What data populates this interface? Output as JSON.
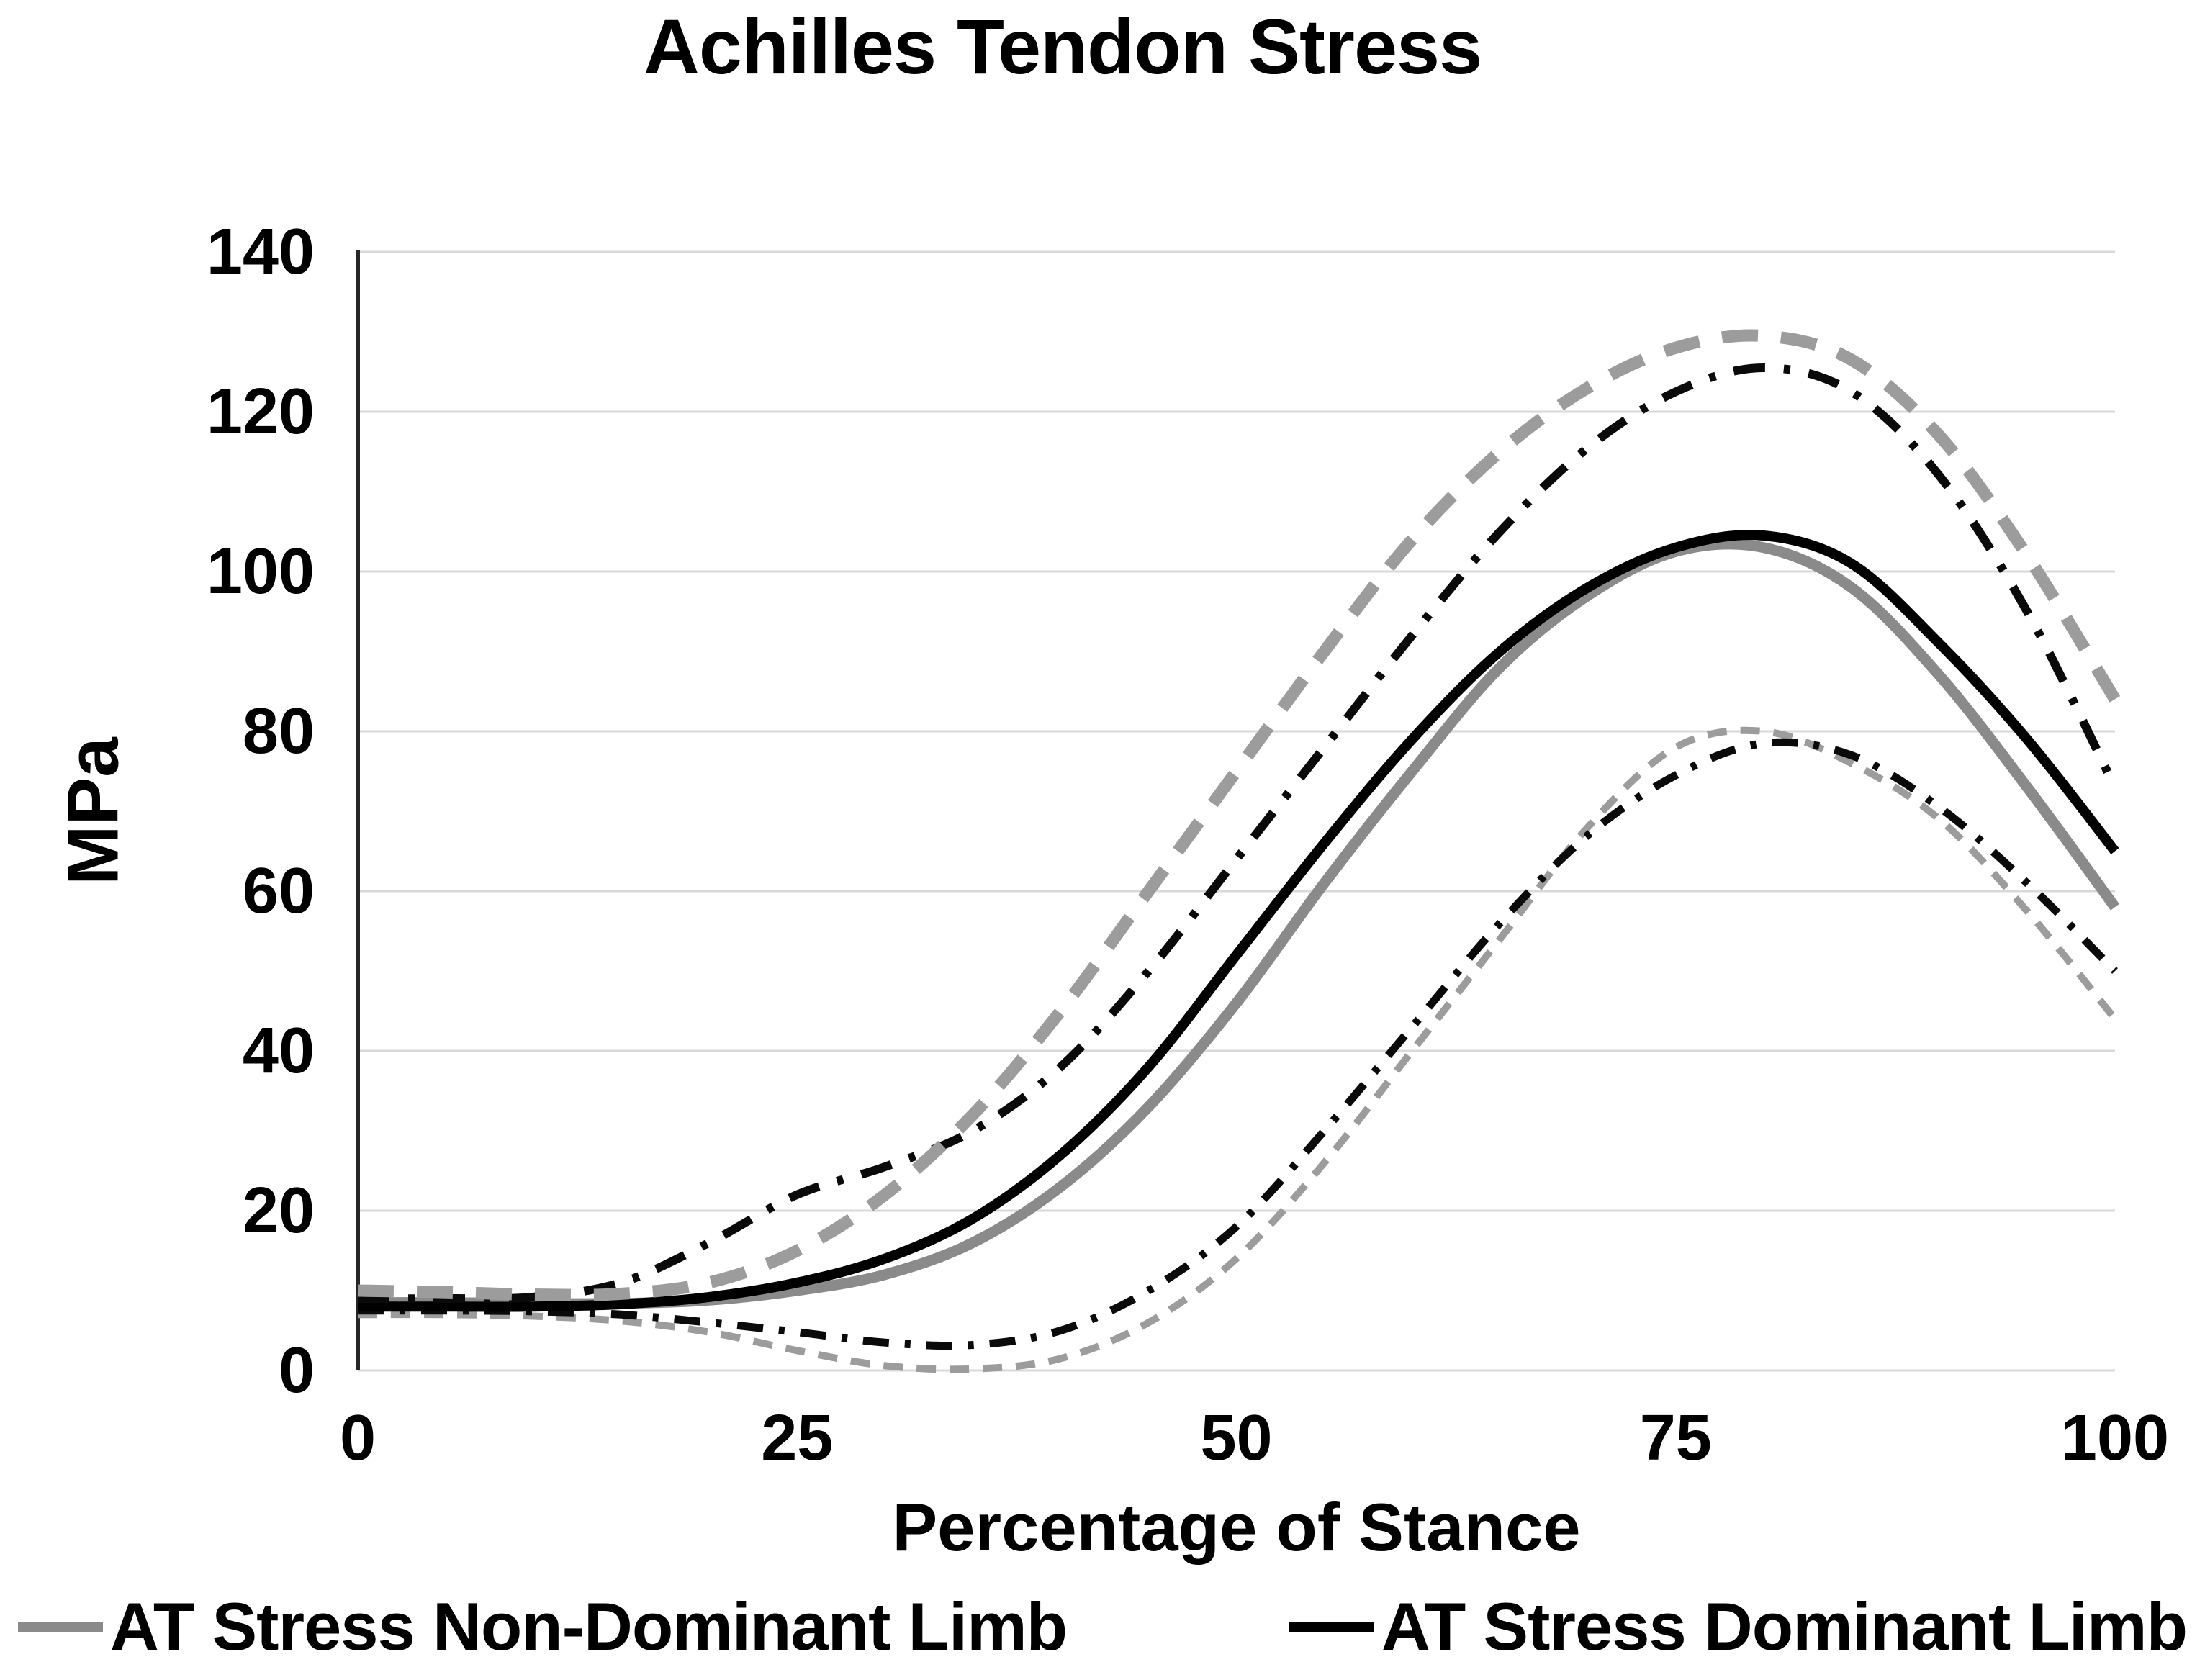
{
  "figure": {
    "background": "#ffffff"
  },
  "chart_data": {
    "type": "line",
    "title": "Achilles Tendon Stress",
    "xlabel": "Percentage of Stance",
    "ylabel": "MPa",
    "xlim": [
      0,
      100
    ],
    "ylim": [
      0,
      140
    ],
    "x_ticks": [
      0,
      25,
      50,
      75,
      100
    ],
    "y_ticks": [
      0,
      20,
      40,
      60,
      80,
      100,
      120,
      140
    ],
    "grid": "horizontal",
    "grid_color": "#d9d9d9",
    "axis_color": "#262626",
    "legend_position": "bottom",
    "x": [
      0,
      5,
      10,
      15,
      20,
      25,
      30,
      35,
      40,
      45,
      50,
      55,
      60,
      65,
      70,
      75,
      80,
      85,
      90,
      95,
      100
    ],
    "series": [
      {
        "id": "non-dominant-lower-band",
        "name": "Non-Dominant Limb lower band",
        "color": "#9c9c9c",
        "style": "dashed",
        "dash": "27 19",
        "width": 10,
        "values": [
          7,
          7,
          6.8,
          6.2,
          4.8,
          2.5,
          0.6,
          0.2,
          1.5,
          6,
          14,
          26,
          40,
          54,
          68,
          78,
          80,
          76,
          69,
          57.5,
          44
        ]
      },
      {
        "id": "dominant-lower-band",
        "name": "Dominant Limb lower band",
        "color": "#0a0a0a",
        "style": "dash-dot",
        "dash": "36 22 8 22",
        "width": 11,
        "values": [
          7.5,
          7.5,
          7.4,
          7,
          6,
          4.8,
          3.5,
          3.2,
          5,
          10,
          18,
          30,
          43,
          56,
          67,
          74.5,
          78.5,
          77,
          70.5,
          61,
          50
        ]
      },
      {
        "id": "non-dominant-mean",
        "name": "AT Stress Non-Dominant Limb",
        "color": "#8a8a8a",
        "style": "solid",
        "dash": "",
        "width": 15,
        "values": [
          8.5,
          8.5,
          8.4,
          8.4,
          8.8,
          10,
          12,
          16,
          23,
          33,
          46,
          61,
          75,
          88,
          97,
          102.5,
          103,
          98,
          87,
          73,
          58
        ]
      },
      {
        "id": "dominant-mean",
        "name": "AT Stress Dominant Limb",
        "color": "#000000",
        "style": "solid",
        "dash": "",
        "width": 14,
        "values": [
          8,
          8,
          8,
          8.3,
          9.2,
          11,
          14,
          19,
          27,
          38,
          52,
          66,
          79,
          90,
          98,
          103,
          104.5,
          101,
          91,
          79,
          65
        ]
      },
      {
        "id": "dominant-upper-band",
        "name": "Dominant Limb upper band",
        "color": "#0a0a0a",
        "style": "dash-dot",
        "dash": "44 26 9 26",
        "width": 12,
        "values": [
          9,
          9,
          9.2,
          11,
          16,
          22,
          25.5,
          30,
          38,
          50,
          64,
          78,
          92,
          105,
          115.5,
          122.5,
          125.5,
          122.5,
          112,
          95,
          73
        ]
      },
      {
        "id": "non-dominant-upper-band",
        "name": "Non-Dominant Limb upper band",
        "color": "#9c9c9c",
        "style": "dashed",
        "dash": "50 32",
        "width": 17,
        "values": [
          10,
          9.8,
          9.5,
          9.6,
          11,
          15,
          22,
          32,
          45,
          60,
          75,
          90,
          104,
          115,
          123,
          128,
          129.5,
          126.5,
          117,
          102,
          84
        ]
      }
    ],
    "legend": [
      {
        "label": "AT Stress Non-Dominant Limb",
        "color": "#8a8a8a",
        "style": "solid"
      },
      {
        "label": "AT Stress Dominant Limb",
        "color": "#000000",
        "style": "solid"
      }
    ]
  }
}
